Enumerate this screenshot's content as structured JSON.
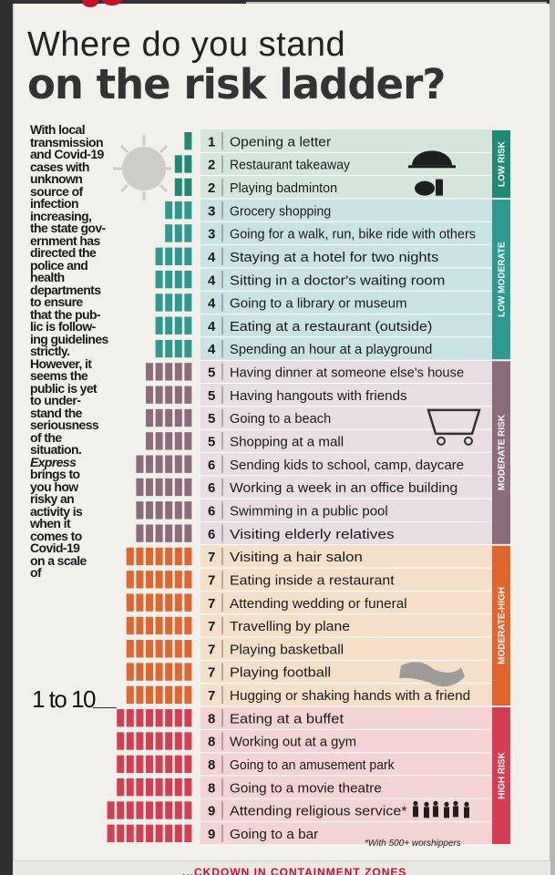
{
  "header": {
    "title_line1": "Where do you stand",
    "title_line2": "on the risk ladder?"
  },
  "intro": {
    "text": "With local\ntransmission\nand Covid-19\ncases with\nunknown\nsource of\ninfection\nincreasing,\nthe state gov-\nernment has\ndirected the\npolice and\nhealth\ndepartments\nto ensure\nthat the pub-\nlic is follow-\ning guidelines\nstrictly.\nHowever, it\nseems the\npublic is yet\nto under-\nstand the\nseriousness\nof the\nsituation.",
    "express": "Express",
    "text2": "brings to\nyou how\nrisky an\nactivity is\nwhen it\ncomes to\nCovid-19\non a scale\nof",
    "scale": "1 to 10"
  },
  "footnote": "*With 500+ worshippers",
  "bottom_text": "...CKDOWN IN CONTAINMENT ZONES",
  "colors": {
    "low": "#1e8a73",
    "low_bg": "#d4e6dc",
    "low_moderate": "#2c9a90",
    "low_moderate_bg": "#c9e3e3",
    "moderate": "#8c6b7a",
    "moderate_bg": "#e8dde3",
    "moderate_high": "#e0662d",
    "moderate_high_bg": "#f4dfc8",
    "high": "#d63c52",
    "high_bg": "#f3d3d3"
  },
  "icons": [
    "cloche-icon",
    "shuttlecock-icon",
    "shopping-cart-icon",
    "handshake-icon",
    "worshippers-icon",
    "virus-icon"
  ],
  "chart_data": {
    "type": "bar",
    "orientation": "horizontal",
    "categories_label": "",
    "bands": [
      {
        "name": "LOW RISK",
        "key": "low"
      },
      {
        "name": "LOW MODERATE",
        "key": "low_moderate"
      },
      {
        "name": "MODERATE RISK",
        "key": "moderate"
      },
      {
        "name": "MODERATE-HIGH",
        "key": "moderate_high"
      },
      {
        "name": "HIGH RISK",
        "key": "high"
      }
    ],
    "activities": [
      {
        "label": "Opening a letter",
        "value": 1,
        "band": "low"
      },
      {
        "label": "Restaurant takeaway",
        "value": 2,
        "band": "low"
      },
      {
        "label": "Playing badminton",
        "value": 2,
        "band": "low"
      },
      {
        "label": "Grocery shopping",
        "value": 3,
        "band": "low_moderate"
      },
      {
        "label": "Going for a walk, run, bike ride with others",
        "value": 3,
        "band": "low_moderate"
      },
      {
        "label": "Staying at a hotel for two nights",
        "value": 4,
        "band": "low_moderate"
      },
      {
        "label": "Sitting in a doctor's waiting room",
        "value": 4,
        "band": "low_moderate"
      },
      {
        "label": "Going to a library or museum",
        "value": 4,
        "band": "low_moderate"
      },
      {
        "label": "Eating at a restaurant (outside)",
        "value": 4,
        "band": "low_moderate"
      },
      {
        "label": "Spending an hour at a playground",
        "value": 4,
        "band": "low_moderate"
      },
      {
        "label": "Having dinner at someone else's house",
        "value": 5,
        "band": "moderate"
      },
      {
        "label": "Having hangouts with friends",
        "value": 5,
        "band": "moderate"
      },
      {
        "label": "Going to a beach",
        "value": 5,
        "band": "moderate"
      },
      {
        "label": "Shopping at a mall",
        "value": 5,
        "band": "moderate"
      },
      {
        "label": "Sending kids to school, camp, daycare",
        "value": 6,
        "band": "moderate"
      },
      {
        "label": "Working a week in an office building",
        "value": 6,
        "band": "moderate"
      },
      {
        "label": "Swimming in a public pool",
        "value": 6,
        "band": "moderate"
      },
      {
        "label": "Visiting elderly relatives",
        "value": 6,
        "band": "moderate"
      },
      {
        "label": "Visiting a hair salon",
        "value": 7,
        "band": "moderate_high"
      },
      {
        "label": "Eating inside a restaurant",
        "value": 7,
        "band": "moderate_high"
      },
      {
        "label": "Attending wedding or funeral",
        "value": 7,
        "band": "moderate_high"
      },
      {
        "label": "Travelling by plane",
        "value": 7,
        "band": "moderate_high"
      },
      {
        "label": "Playing basketball",
        "value": 7,
        "band": "moderate_high"
      },
      {
        "label": "Playing football",
        "value": 7,
        "band": "moderate_high"
      },
      {
        "label": "Hugging or shaking hands with a friend",
        "value": 7,
        "band": "moderate_high"
      },
      {
        "label": "Eating at a buffet",
        "value": 8,
        "band": "high"
      },
      {
        "label": "Working out at a gym",
        "value": 8,
        "band": "high"
      },
      {
        "label": "Going to an amusement park",
        "value": 8,
        "band": "high"
      },
      {
        "label": "Going to a movie theatre",
        "value": 8,
        "band": "high"
      },
      {
        "label": "Attending religious service*",
        "value": 9,
        "band": "high"
      },
      {
        "label": "Going to a bar",
        "value": 9,
        "band": "high"
      }
    ],
    "xlim": [
      0,
      10
    ]
  }
}
